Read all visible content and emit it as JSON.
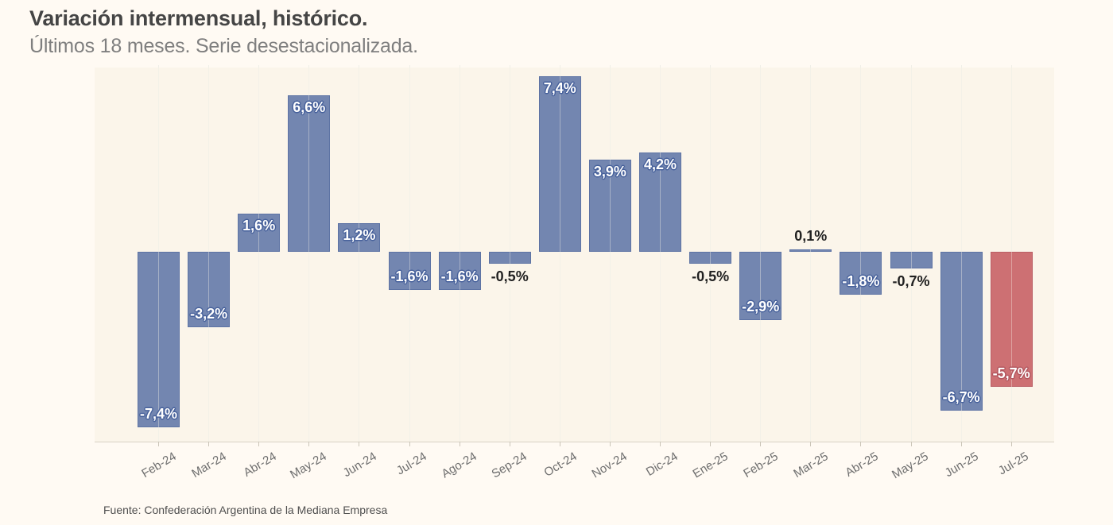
{
  "header": {
    "title": "Variación intermensual, histórico.",
    "subtitle": "Últimos 18 meses. Serie desestacionalizada."
  },
  "footer": {
    "source": "Fuente: Confederación Argentina de la Mediana Empresa"
  },
  "chart_data": {
    "type": "bar",
    "title": "Variación intermensual, histórico.",
    "subtitle": "Últimos 18 meses. Serie desestacionalizada.",
    "source_note": "Fuente: Confederación Argentina de la Mediana Empresa",
    "categories": [
      "Feb-24",
      "Mar-24",
      "Abr-24",
      "May-24",
      "Jun-24",
      "Jul-24",
      "Ago-24",
      "Sep-24",
      "Oct-24",
      "Nov-24",
      "Dic-24",
      "Ene-25",
      "Feb-25",
      "Mar-25",
      "Abr-25",
      "May-25",
      "Jun-25",
      "Jul-25"
    ],
    "values": [
      -7.4,
      -3.2,
      1.6,
      6.6,
      1.2,
      -1.6,
      -1.6,
      -0.5,
      7.4,
      3.9,
      4.2,
      -0.5,
      -2.9,
      0.1,
      -1.8,
      -0.7,
      -6.7,
      -5.7
    ],
    "value_labels": [
      "-7,4%",
      "-3,2%",
      "1,6%",
      "6,6%",
      "1,2%",
      "-1,6%",
      "-1,6%",
      "-0,5%",
      "7,4%",
      "3,9%",
      "4,2%",
      "-0,5%",
      "-2,9%",
      "0,1%",
      "-1,8%",
      "-0,7%",
      "-6,7%",
      "-5,7%"
    ],
    "highlight_index": 17,
    "colors": {
      "bar": "#7386b0",
      "bar_border": "#5d73a4",
      "highlight": "#cd7073",
      "highlight_border": "#ba5f66",
      "background": "#fffaf3",
      "plot_background": "#fbf5ea",
      "axis_line": "#d8d2c4",
      "gridline": "#efefe7",
      "axis_label": "#6e6e6e"
    },
    "ylabel": "",
    "xlabel": "",
    "ylim": [
      -8,
      8
    ],
    "grid": "vertical",
    "legend": false,
    "label_format": "decimal comma, percent"
  }
}
